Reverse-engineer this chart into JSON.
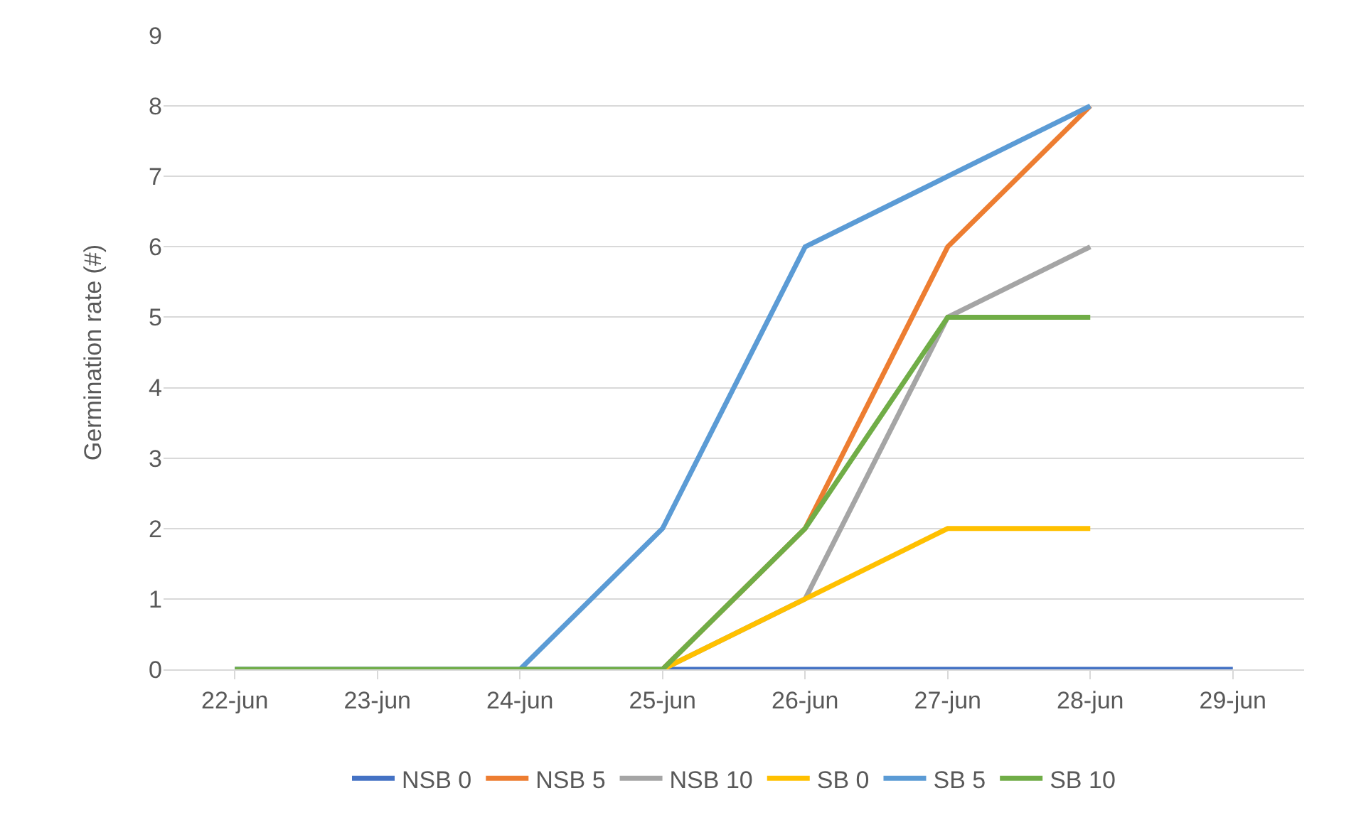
{
  "chart_data": {
    "type": "line",
    "ylabel": "Germination rate (#)",
    "categories": [
      "22-jun",
      "23-jun",
      "24-jun",
      "25-jun",
      "26-jun",
      "27-jun",
      "28-jun",
      "29-jun"
    ],
    "series": [
      {
        "name": "NSB 0",
        "color": "#4472c4",
        "values": [
          0,
          0,
          0,
          0,
          0,
          0,
          0,
          0
        ]
      },
      {
        "name": "NSB 5",
        "color": "#ed7d31",
        "values": [
          null,
          null,
          null,
          0,
          2,
          6,
          8,
          null
        ]
      },
      {
        "name": "NSB 10",
        "color": "#a5a5a5",
        "values": [
          null,
          null,
          null,
          0,
          1,
          5,
          6,
          null
        ]
      },
      {
        "name": "SB 0",
        "color": "#ffc000",
        "values": [
          null,
          null,
          null,
          0,
          1,
          2,
          2,
          null
        ]
      },
      {
        "name": "SB 5",
        "color": "#5b9bd5",
        "values": [
          null,
          null,
          0,
          2,
          6,
          7,
          8,
          null
        ]
      },
      {
        "name": "SB 10",
        "color": "#70ad47",
        "values": [
          0,
          0,
          0,
          0,
          2,
          5,
          5,
          null
        ]
      }
    ],
    "ylim": [
      0,
      9
    ],
    "yticks": [
      0,
      1,
      2,
      3,
      4,
      5,
      6,
      7,
      8,
      9
    ],
    "grid": "y",
    "legend": "bottom",
    "marker": "none",
    "line_style": "solid"
  }
}
